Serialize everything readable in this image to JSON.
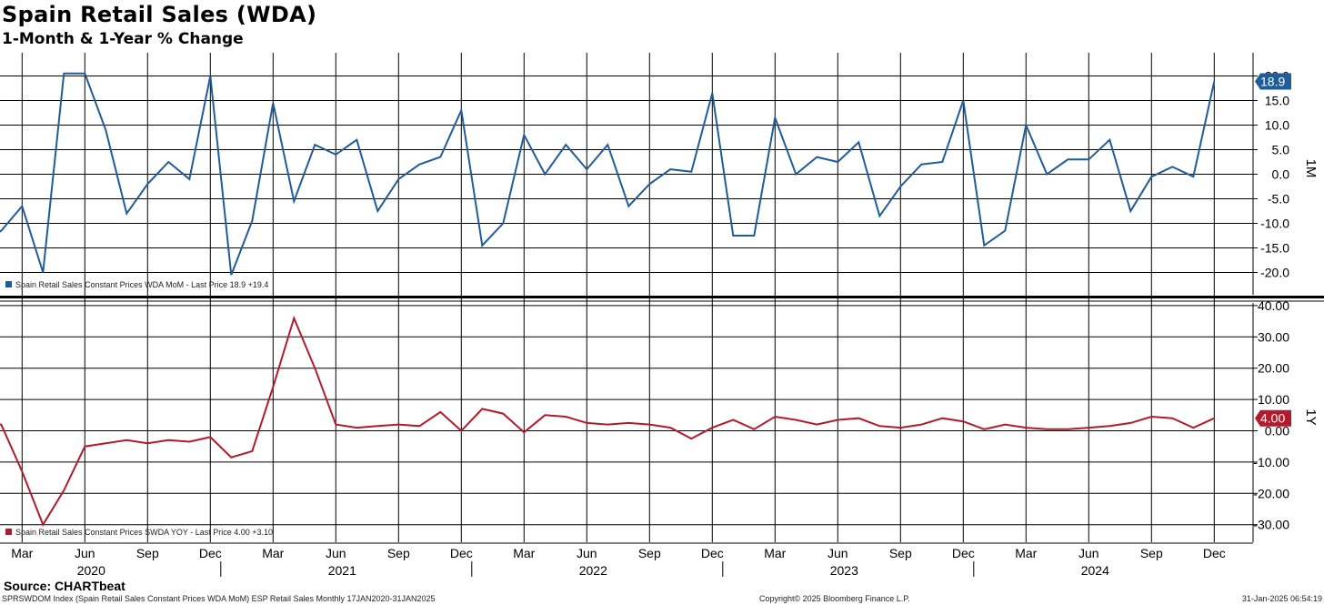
{
  "title": "Spain Retail Sales (WDA)",
  "subtitle": "1-Month & 1-Year % Change",
  "source": "Source: CHARTbeat",
  "footer": {
    "left": "SPRSWDOM Index (Spain Retail Sales Constant Prices WDA MoM) ESP Retail Sales  Monthly 17JAN2020-31JAN2025",
    "center": "Copyright© 2025 Bloomberg Finance L.P.",
    "right": "31-Jan-2025 06:54:19"
  },
  "colors": {
    "mom": "#1f5c99",
    "yoy": "#b01c2e",
    "grid": "#000000"
  },
  "chart_data": [
    {
      "type": "line",
      "panel": "top",
      "axis_label": "1M",
      "ylim": [
        -23,
        21
      ],
      "yticks": [
        "20.0",
        "15.0",
        "10.0",
        "5.0",
        "0.0",
        "-5.0",
        "-10.0",
        "-15.0",
        "-20.0"
      ],
      "ytick_values": [
        20,
        15,
        10,
        5,
        0,
        -5,
        -10,
        -15,
        -20
      ],
      "last_value_label": "18.9",
      "legend": "Spain Retail Sales Constant Prices WDA MoM - Last Price 18.9  +19.4",
      "series": [
        {
          "name": "Spain Retail Sales Constant Prices WDA MoM",
          "values": [
            -14.5,
            -11.5,
            -6.5,
            -20,
            20.5,
            20.5,
            9,
            -8,
            -2,
            2.5,
            -1,
            20,
            -20.5,
            -9.5,
            14.5,
            -5.5,
            6,
            4,
            7,
            -7.5,
            -1,
            2,
            3.5,
            13,
            -14.5,
            -10,
            8,
            0,
            6,
            1,
            6,
            -6.5,
            -2,
            1,
            0.5,
            16.5,
            -12.5,
            -12.5,
            11.5,
            0,
            3.5,
            2.5,
            6.5,
            -8.5,
            -2.5,
            2,
            2.5,
            15,
            -14.5,
            -11.5,
            10,
            0,
            3,
            3,
            7,
            -7.5,
            -0.5,
            1.5,
            -0.5,
            18.9
          ]
        }
      ]
    },
    {
      "type": "line",
      "panel": "bottom",
      "axis_label": "1Y",
      "ylim": [
        -36,
        42
      ],
      "yticks": [
        "40.00",
        "30.00",
        "20.00",
        "10.00",
        "0.00",
        "-10.00",
        "-20.00",
        "-30.00"
      ],
      "ytick_values": [
        40,
        30,
        20,
        10,
        0,
        -10,
        -20,
        -30
      ],
      "last_value_label": "4.00",
      "legend": "Spain Retail Sales Constant Prices SWDA YOY - Last Price 4.00  +3.10",
      "series": [
        {
          "name": "Spain Retail Sales Constant Prices SWDA YOY",
          "values": [
            1,
            2,
            -13,
            -30,
            -19,
            -5,
            -4,
            -3,
            -4,
            -3,
            -3.5,
            -2,
            -8.5,
            -6.5,
            14,
            36,
            20,
            2,
            1,
            1.5,
            2,
            1.5,
            6,
            0,
            7,
            5.5,
            -0.5,
            5,
            4.5,
            2.5,
            2,
            2.5,
            2,
            1,
            -2.5,
            1,
            3.5,
            0.5,
            4.5,
            3.5,
            2,
            3.5,
            4,
            1.5,
            1,
            2,
            4,
            3,
            0.5,
            2,
            1,
            0.5,
            0.5,
            1,
            1.5,
            2.5,
            4.5,
            4,
            1,
            4
          ]
        }
      ]
    }
  ],
  "xaxis": {
    "month_ticks": [
      "Mar",
      "Jun",
      "Sep",
      "Dec",
      "Mar",
      "Jun",
      "Sep",
      "Dec",
      "Mar",
      "Jun",
      "Sep",
      "Dec",
      "Mar",
      "Jun",
      "Sep",
      "Dec",
      "Mar",
      "Jun",
      "Sep",
      "Dec"
    ],
    "month_indices": [
      2,
      5,
      8,
      11,
      14,
      17,
      20,
      23,
      26,
      29,
      32,
      35,
      38,
      41,
      44,
      47,
      50,
      53,
      56,
      59
    ],
    "years": [
      "2020",
      "2021",
      "2022",
      "2023",
      "2024"
    ],
    "year_indices": [
      5,
      17,
      29,
      41,
      53
    ]
  }
}
